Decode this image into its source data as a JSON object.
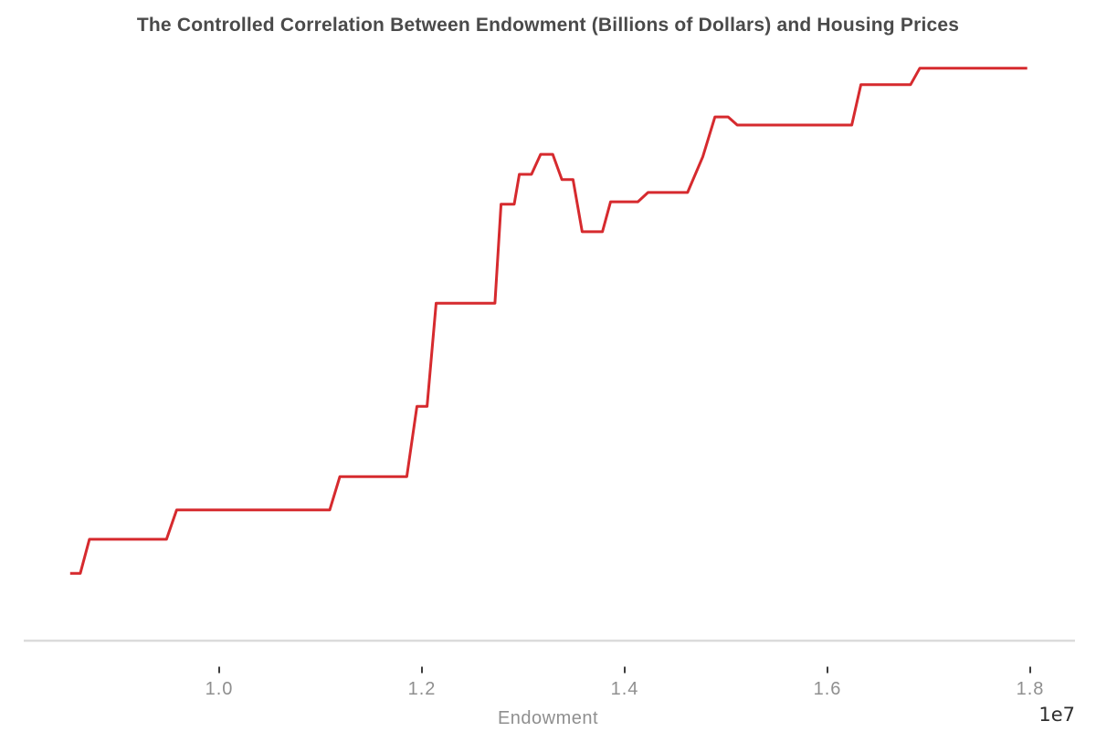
{
  "chart_data": {
    "type": "line",
    "title": "The Controlled Correlation Between Endowment (Billions of Dollars) and Housing Prices",
    "xlabel": "Endowment",
    "ylabel": "",
    "grid": false,
    "legend": false,
    "x_axis": {
      "tick_values": [
        1.0,
        1.2,
        1.4,
        1.6,
        1.8
      ],
      "tick_labels": [
        "1.0",
        "1.2",
        "1.4",
        "1.6",
        "1.8"
      ],
      "offset_text": "1e7",
      "multiplier": 10000000,
      "range": [
        0.806,
        1.844
      ],
      "note": "x values expressed in units of 1e7 dollars"
    },
    "y_axis": {
      "visible": false,
      "range": [
        0,
        100
      ],
      "note": "y axis is hidden/unlabeled in source; values are relative 0-100 estimates of housing price level"
    },
    "series": [
      {
        "name": "Housing Prices",
        "color": "#d62a2e",
        "x": [
          0.853,
          0.863,
          0.872,
          0.948,
          0.958,
          1.109,
          1.119,
          1.185,
          1.195,
          1.205,
          1.214,
          1.272,
          1.278,
          1.291,
          1.296,
          1.308,
          1.317,
          1.329,
          1.338,
          1.349,
          1.358,
          1.378,
          1.386,
          1.413,
          1.423,
          1.462,
          1.477,
          1.489,
          1.502,
          1.511,
          1.624,
          1.633,
          1.682,
          1.691,
          1.797
        ],
        "y": [
          11.5,
          11.5,
          17.3,
          17.3,
          22.3,
          22.3,
          28.0,
          28.0,
          40.0,
          40.0,
          57.6,
          57.6,
          74.5,
          74.5,
          79.6,
          79.6,
          83.0,
          83.0,
          78.7,
          78.7,
          69.8,
          69.8,
          74.9,
          74.9,
          76.5,
          76.5,
          82.6,
          89.4,
          89.4,
          88.0,
          88.0,
          94.9,
          94.9,
          97.7,
          97.7
        ]
      }
    ]
  },
  "colors": {
    "background": "#ffffff",
    "line": "#d62a2e",
    "title_text": "#4a4a4a",
    "tick_label_text": "#8f8f8f",
    "tick_mark": "#3d3d3d",
    "axis_line": "#dbdbdb",
    "xlabel_text": "#8f8f8f",
    "offset_text": "#2e2e2e"
  }
}
